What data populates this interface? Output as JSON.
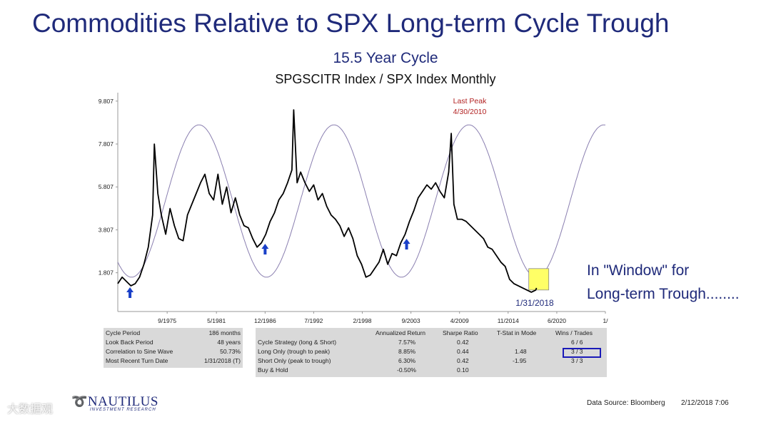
{
  "header": {
    "title": "Commodities Relative to SPX Long-term Cycle Trough",
    "cycle": "15.5 Year Cycle",
    "subtitle": "SPGSCITR Index / SPX Index Monthly"
  },
  "chart_data": {
    "type": "line",
    "y_ticks": [
      "9.807",
      "7.807",
      "5.807",
      "3.807",
      "1.807"
    ],
    "y_tick_values": [
      9.807,
      7.807,
      5.807,
      3.807,
      1.807
    ],
    "ylim": [
      0.0,
      10.2
    ],
    "x_ticks": [
      "9/1975",
      "5/1981",
      "12/1986",
      "7/1992",
      "2/1998",
      "9/2003",
      "4/2009",
      "11/2014",
      "6/2020",
      "1/"
    ],
    "x_tick_values": [
      1975.67,
      1981.33,
      1986.92,
      1992.5,
      1998.08,
      2003.67,
      2009.25,
      2014.83,
      2020.42,
      2026.0
    ],
    "xlim": [
      1970.0,
      2026.0
    ],
    "grid": false,
    "series": [
      {
        "color": "#000000",
        "x": [
          1970.0,
          1970.5,
          1971.0,
          1971.5,
          1972.0,
          1972.5,
          1973.0,
          1973.5,
          1974.0,
          1974.2,
          1974.6,
          1975.0,
          1975.5,
          1976.0,
          1976.5,
          1977.0,
          1977.5,
          1978.0,
          1978.5,
          1979.0,
          1979.5,
          1980.0,
          1980.5,
          1981.0,
          1981.5,
          1982.0,
          1982.5,
          1983.0,
          1983.5,
          1984.0,
          1984.5,
          1985.0,
          1985.5,
          1986.0,
          1986.5,
          1987.0,
          1987.5,
          1988.0,
          1988.5,
          1989.0,
          1989.5,
          1990.0,
          1990.2,
          1990.6,
          1991.0,
          1991.5,
          1992.0,
          1992.5,
          1993.0,
          1993.5,
          1994.0,
          1994.5,
          1995.0,
          1995.5,
          1996.0,
          1996.5,
          1997.0,
          1997.5,
          1998.0,
          1998.5,
          1999.0,
          1999.5,
          2000.0,
          2000.5,
          2001.0,
          2001.5,
          2002.0,
          2002.5,
          2003.0,
          2003.5,
          2004.0,
          2004.5,
          2005.0,
          2005.5,
          2006.0,
          2006.5,
          2007.0,
          2007.5,
          2008.0,
          2008.3,
          2008.6,
          2009.0,
          2009.5,
          2010.0,
          2010.5,
          2011.0,
          2011.5,
          2012.0,
          2012.5,
          2013.0,
          2013.5,
          2014.0,
          2014.5,
          2015.0,
          2015.5,
          2016.0,
          2016.5,
          2017.0,
          2017.5,
          2018.0,
          2018.1
        ],
        "values": [
          1.3,
          1.6,
          1.4,
          1.2,
          1.3,
          1.6,
          2.2,
          3.0,
          4.5,
          7.8,
          5.5,
          4.5,
          3.6,
          4.8,
          4.0,
          3.4,
          3.3,
          4.5,
          5.0,
          5.5,
          6.0,
          6.4,
          5.5,
          5.2,
          6.4,
          5.0,
          5.8,
          4.6,
          5.3,
          4.5,
          4.0,
          3.9,
          3.4,
          3.0,
          3.2,
          3.6,
          4.2,
          4.6,
          5.2,
          5.5,
          6.0,
          6.6,
          9.4,
          6.0,
          6.5,
          6.0,
          5.6,
          5.9,
          5.2,
          5.5,
          4.9,
          4.5,
          4.3,
          4.0,
          3.5,
          3.9,
          3.4,
          2.6,
          2.2,
          1.6,
          1.7,
          2.0,
          2.3,
          2.9,
          2.2,
          2.7,
          2.6,
          3.2,
          3.6,
          4.2,
          4.7,
          5.3,
          5.6,
          5.9,
          5.7,
          6.0,
          5.6,
          5.3,
          6.5,
          8.3,
          5.0,
          4.3,
          4.3,
          4.2,
          4.0,
          3.8,
          3.6,
          3.4,
          3.0,
          2.9,
          2.6,
          2.3,
          2.1,
          1.5,
          1.3,
          1.2,
          1.1,
          1.0,
          0.9,
          1.0,
          1.1
        ]
      },
      {
        "color": "#8a7fb0",
        "type": "sine",
        "period_months": 186,
        "peak_x": 2010.33,
        "min_value": 1.6,
        "max_value": 8.7
      }
    ],
    "annotations": [
      {
        "text": "Last Peak",
        "color": "#b22222"
      },
      {
        "text": "4/30/2010",
        "color": "#b22222"
      },
      {
        "text": "1/31/2018",
        "color": "#1f2a7a"
      }
    ],
    "trough_arrows_x": [
      1971.4,
      1986.92,
      2003.17
    ],
    "highlight_box": {
      "color": "#ffff66"
    }
  },
  "note": {
    "line1": "In \"Window\" for",
    "line2": "Long-term Trough........"
  },
  "stats_left": [
    {
      "label": "Cycle Period",
      "value": "186 months"
    },
    {
      "label": "Look Back Period",
      "value": "48 years"
    },
    {
      "label": "Correlation to Sine Wave",
      "value": "50.73%"
    },
    {
      "label": "Most Recent Turn Date",
      "value": "1/31/2018 (T)"
    }
  ],
  "stats_right": {
    "headers": [
      "Annualized Return",
      "Sharpe Ratio",
      "T-Stat in Mode",
      "Wins / Trades"
    ],
    "rows": [
      {
        "label": "Cycle Strategy (long & Short)",
        "ret": "7.57%",
        "sharpe": "0.42",
        "tstat": "",
        "wins": "6 / 6"
      },
      {
        "label": "Long Only (trough to peak)",
        "ret": "8.85%",
        "sharpe": "0.44",
        "tstat": "1.48",
        "wins": "3 / 3"
      },
      {
        "label": "Short Only (peak to trough)",
        "ret": "6.30%",
        "sharpe": "0.42",
        "tstat": "-1.95",
        "wins": "3 / 3"
      },
      {
        "label": "Buy & Hold",
        "ret": "-0.50%",
        "sharpe": "0.10",
        "tstat": "",
        "wins": ""
      }
    ]
  },
  "logo": {
    "name": "NAUTILUS",
    "sub": "INVESTMENT RESEARCH"
  },
  "footer": {
    "source": "Data Source: Bloomberg",
    "timestamp": "2/12/2018 7:06"
  },
  "watermark": "大数据观"
}
